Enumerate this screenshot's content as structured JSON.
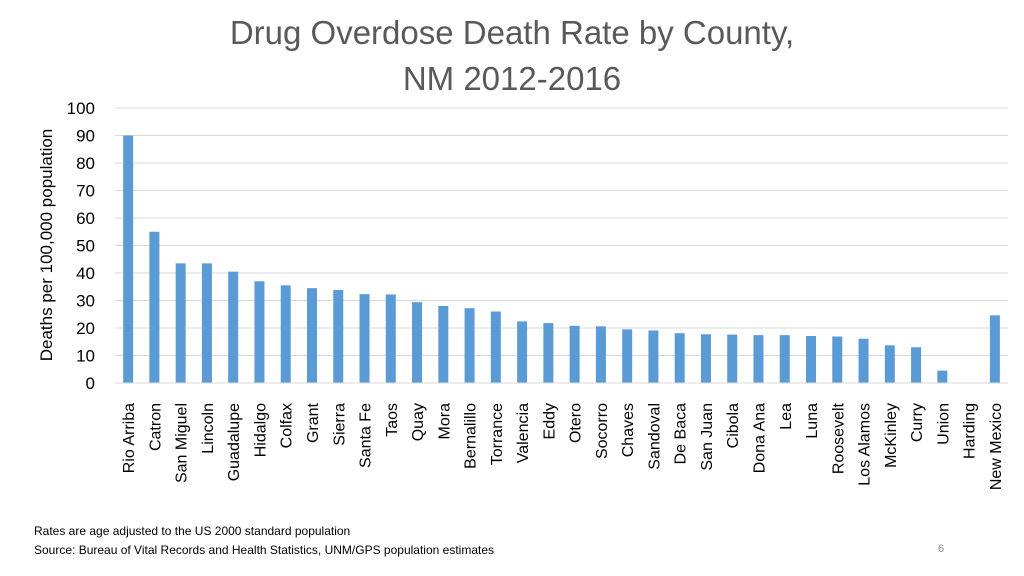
{
  "title_line1": "Drug Overdose Death Rate by County,",
  "title_line2": "NM 2012-2016",
  "footnote1": "Rates are age adjusted to the US 2000 standard population",
  "footnote2": "Source:  Bureau of Vital Records and Health Statistics, UNM/GPS population estimates",
  "page_number": "6",
  "chart_data": {
    "type": "bar",
    "title": "Drug Overdose Death Rate by County, NM 2012-2016",
    "xlabel": "",
    "ylabel": "Deaths per 100,000 population",
    "ylim": [
      0,
      100
    ],
    "yticks": [
      0,
      10,
      20,
      30,
      40,
      50,
      60,
      70,
      80,
      90,
      100
    ],
    "grid": true,
    "bar_color": "#5b9bd5",
    "categories": [
      "Rio Arriba",
      "Catron",
      "San Miguel",
      "Lincoln",
      "Guadalupe",
      "Hidalgo",
      "Colfax",
      "Grant",
      "Sierra",
      "Santa Fe",
      "Taos",
      "Quay",
      "Mora",
      "Bernalillo",
      "Torrance",
      "Valencia",
      "Eddy",
      "Otero",
      "Socorro",
      "Chaves",
      "Sandoval",
      "De Baca",
      "San Juan",
      "Cibola",
      "Dona Ana",
      "Lea",
      "Luna",
      "Roosevelt",
      "Los Alamos",
      "McKinley",
      "Curry",
      "Union",
      "Harding",
      "New Mexico"
    ],
    "values": [
      90,
      55,
      43.5,
      43.5,
      40.5,
      37,
      35.5,
      34.5,
      33.8,
      32.3,
      32.2,
      29.4,
      28,
      27.2,
      26,
      22.4,
      21.8,
      20.8,
      20.6,
      19.5,
      19.1,
      18.1,
      17.7,
      17.6,
      17.4,
      17.4,
      17.1,
      16.9,
      16.1,
      13.7,
      13,
      4.5,
      0,
      24.6
    ]
  }
}
